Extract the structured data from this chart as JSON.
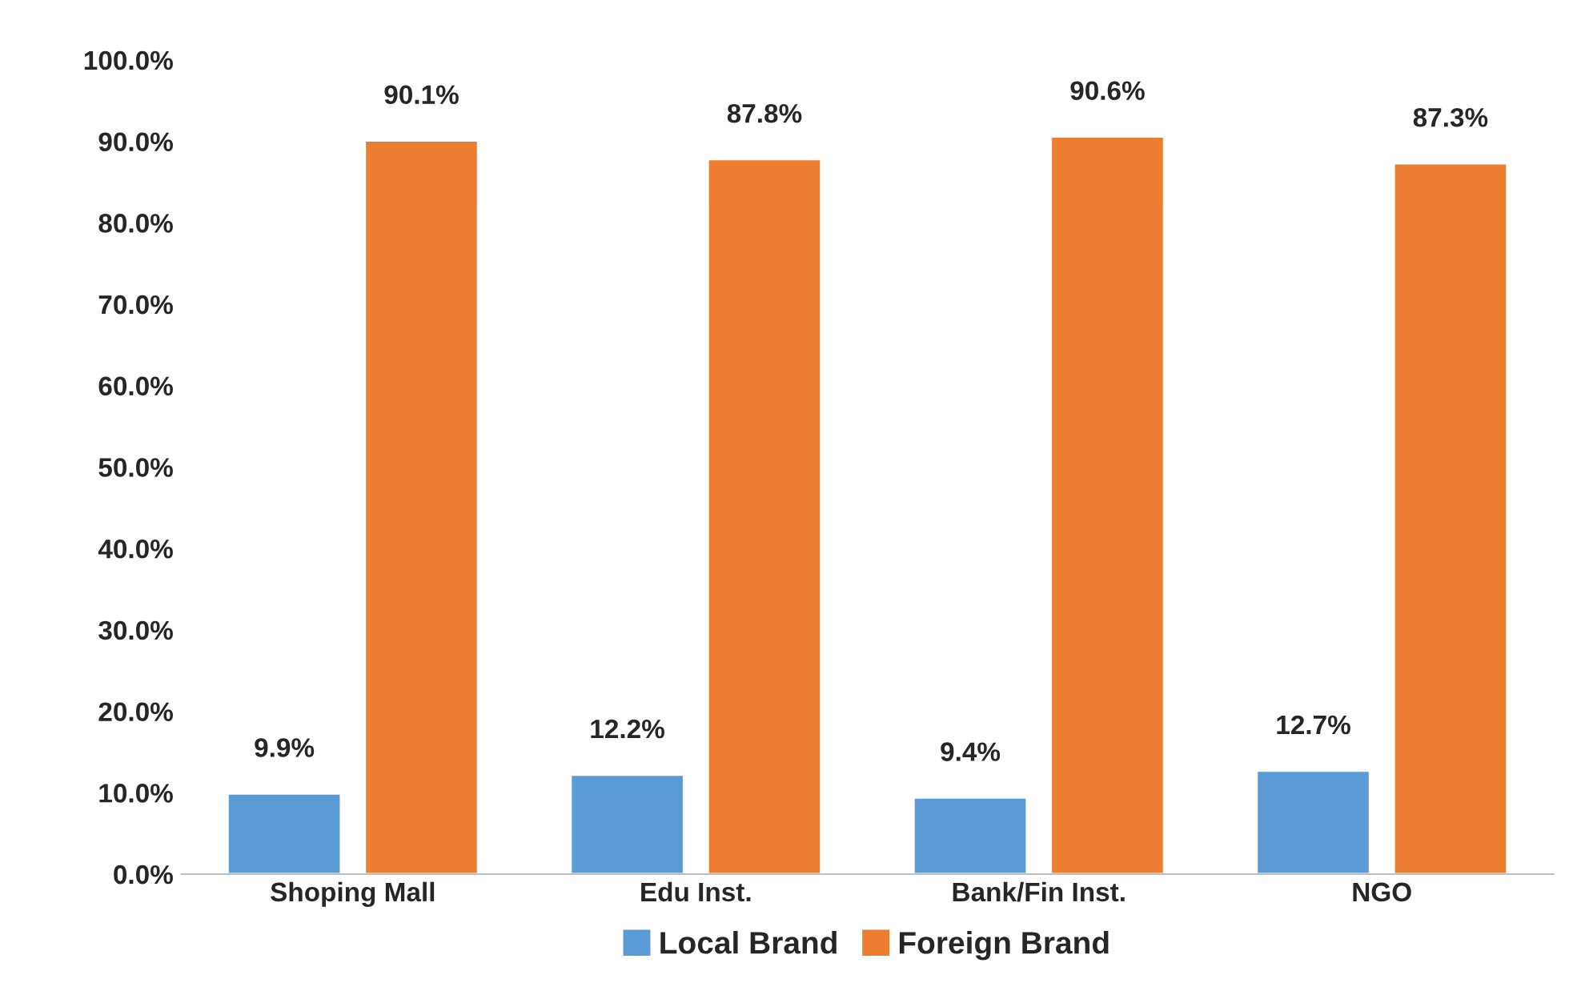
{
  "chart_data": {
    "type": "bar",
    "categories": [
      "Shoping Mall",
      "Edu Inst.",
      "Bank/Fin Inst.",
      "NGO"
    ],
    "series": [
      {
        "name": "Local Brand",
        "color": "#5b9bd5",
        "values": [
          9.9,
          12.2,
          9.4,
          12.7
        ],
        "value_labels": [
          "9.9%",
          "12.2%",
          "9.4%",
          "12.7%"
        ]
      },
      {
        "name": "Foreign Brand",
        "color": "#ed7d31",
        "values": [
          90.1,
          87.8,
          90.6,
          87.3
        ],
        "value_labels": [
          "90.1%",
          "87.8%",
          "90.6%",
          "87.3%"
        ]
      }
    ],
    "ylim": [
      0,
      100
    ],
    "yticks": [
      {
        "value": 0,
        "label": "0.0%"
      },
      {
        "value": 10,
        "label": "10.0%"
      },
      {
        "value": 20,
        "label": "20.0%"
      },
      {
        "value": 30,
        "label": "30.0%"
      },
      {
        "value": 40,
        "label": "40.0%"
      },
      {
        "value": 50,
        "label": "50.0%"
      },
      {
        "value": 60,
        "label": "60.0%"
      },
      {
        "value": 70,
        "label": "70.0%"
      },
      {
        "value": 80,
        "label": "80.0%"
      },
      {
        "value": 90,
        "label": "90.0%"
      },
      {
        "value": 100,
        "label": "100.0%"
      }
    ],
    "grid": false,
    "legend": "bottom"
  }
}
